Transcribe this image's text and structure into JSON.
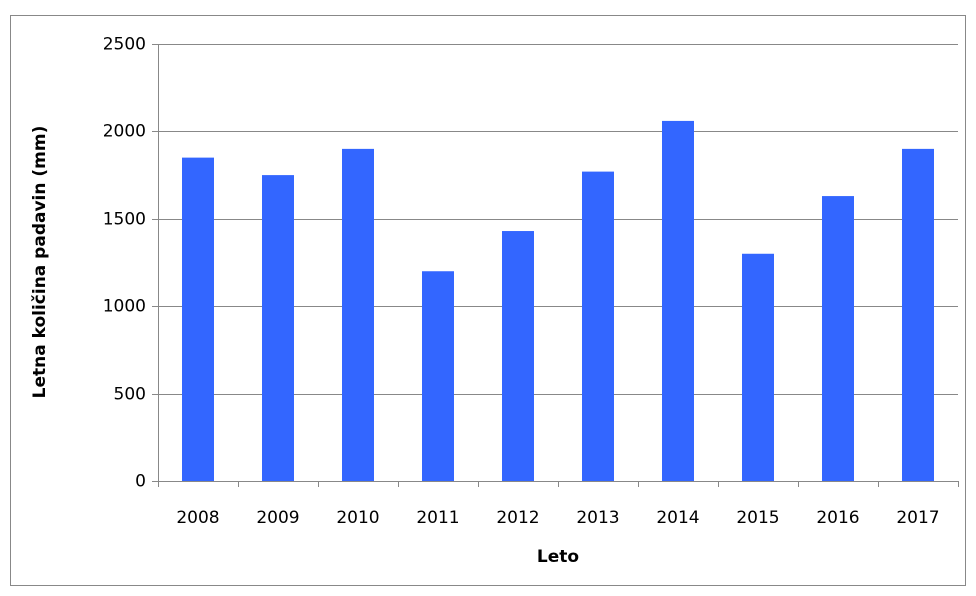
{
  "chart_data": {
    "type": "bar",
    "x_label": "Leto",
    "y_label": "Letna količina padavin (mm)",
    "categories": [
      "2008",
      "2009",
      "2010",
      "2011",
      "2012",
      "2013",
      "2014",
      "2015",
      "2016",
      "2017"
    ],
    "values": [
      1850,
      1750,
      1900,
      1200,
      1430,
      1770,
      2060,
      1300,
      1630,
      1900
    ],
    "color": "#3366ff",
    "ylim": [
      0,
      2500
    ],
    "yticks": [
      0,
      500,
      1000,
      1500,
      2000,
      2500
    ],
    "grid": true
  }
}
